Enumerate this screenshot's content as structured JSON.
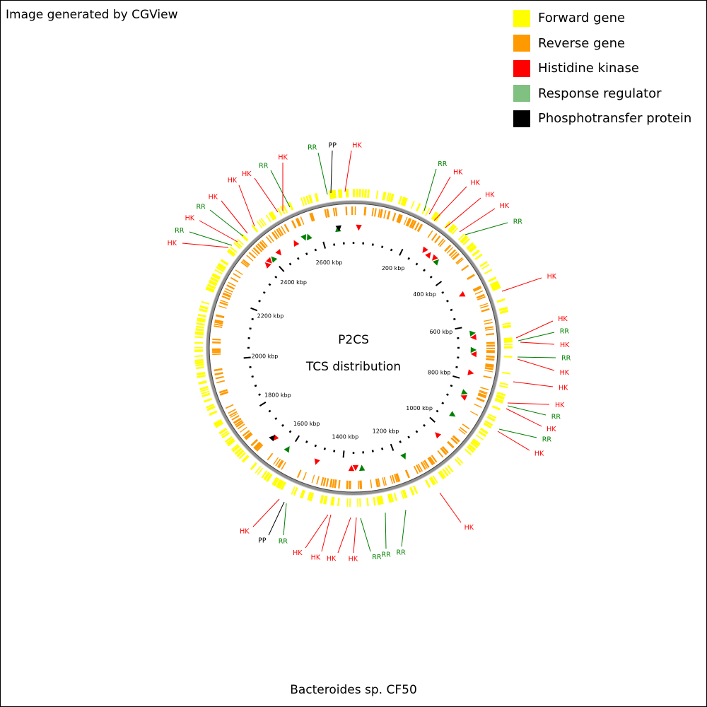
{
  "credit": "Image generated by CGView",
  "legend": [
    {
      "label": "Forward gene",
      "color": "#ffff00"
    },
    {
      "label": "Reverse gene",
      "color": "#ff9900"
    },
    {
      "label": "Histidine kinase",
      "color": "#ff0000"
    },
    {
      "label": "Response regulator",
      "color": "#80c080"
    },
    {
      "label": "Phosphotransfer protein",
      "color": "#000000"
    }
  ],
  "map": {
    "title_line1": "P2CS",
    "title_line2": "TCS distribution",
    "genome_kbp": 2720,
    "major_ticks_kbp": [
      200,
      400,
      600,
      800,
      1000,
      1200,
      1400,
      1600,
      1800,
      2000,
      2200,
      2400,
      2600
    ],
    "tick_labels": [
      "200 kbp",
      "400 kbp",
      "600 kbp",
      "800 kbp",
      "1000 kbp",
      "1200 kbp",
      "1400 kbp",
      "1600 kbp",
      "1800 kbp",
      "2000 kbp",
      "2200 kbp",
      "2400 kbp",
      "2600 kbp"
    ],
    "features": [
      {
        "label": "HK",
        "type": "HK"
      },
      {
        "label": "PP",
        "type": "PP"
      },
      {
        "label": "RR",
        "type": "RR"
      },
      {
        "label": "RR",
        "type": "RR"
      },
      {
        "label": "HK",
        "type": "HK"
      },
      {
        "label": "HK",
        "type": "HK"
      },
      {
        "label": "HK",
        "type": "HK"
      },
      {
        "label": "HK",
        "type": "HK"
      },
      {
        "label": "RR",
        "type": "RR"
      },
      {
        "label": "HK",
        "type": "HK"
      },
      {
        "label": "HK",
        "type": "HK"
      },
      {
        "label": "RR",
        "type": "RR"
      },
      {
        "label": "HK",
        "type": "HK"
      },
      {
        "label": "RR",
        "type": "RR"
      },
      {
        "label": "HK",
        "type": "HK"
      },
      {
        "label": "RR",
        "type": "RR"
      },
      {
        "label": "HK",
        "type": "HK"
      },
      {
        "label": "HK",
        "type": "HK"
      },
      {
        "label": "HK",
        "type": "HK"
      },
      {
        "label": "RR",
        "type": "RR"
      },
      {
        "label": "HK",
        "type": "HK"
      },
      {
        "label": "RR",
        "type": "RR"
      },
      {
        "label": "HK",
        "type": "HK"
      },
      {
        "label": "HK",
        "type": "HK"
      },
      {
        "label": "RR",
        "type": "RR"
      },
      {
        "label": "RR",
        "type": "RR"
      },
      {
        "label": "RR",
        "type": "RR"
      },
      {
        "label": "HK",
        "type": "HK"
      },
      {
        "label": "HK",
        "type": "HK"
      },
      {
        "label": "HK",
        "type": "HK"
      },
      {
        "label": "PP",
        "type": "PP"
      },
      {
        "label": "RR",
        "type": "RR"
      },
      {
        "label": "HK",
        "type": "HK"
      },
      {
        "label": "HK",
        "type": "HK"
      },
      {
        "label": "HK",
        "type": "HK"
      }
    ]
  },
  "footer": "Bacteroides sp. CF50"
}
